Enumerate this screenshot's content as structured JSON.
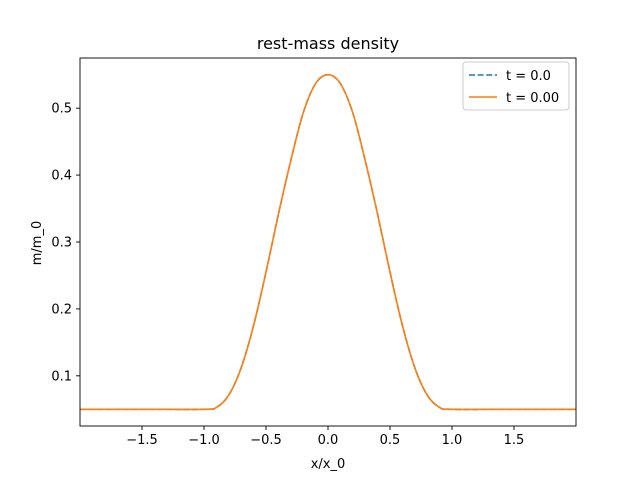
{
  "chart_data": {
    "type": "line",
    "title": "rest-mass density",
    "xlabel": "x/x_0",
    "ylabel": "m/m_0",
    "xlim": [
      -2.0,
      2.0
    ],
    "ylim": [
      0.025,
      0.575
    ],
    "xticks": [
      -1.5,
      -1.0,
      -0.5,
      0.0,
      0.5,
      1.0,
      1.5
    ],
    "xtick_labels": [
      "−1.5",
      "−1.0",
      "−0.5",
      "0.0",
      "0.5",
      "1.0",
      "1.5"
    ],
    "yticks": [
      0.1,
      0.2,
      0.3,
      0.4,
      0.5
    ],
    "ytick_labels": [
      "0.1",
      "0.2",
      "0.3",
      "0.4",
      "0.5"
    ],
    "grid": false,
    "legend_position": "top-right",
    "x": [
      -2.0,
      -1.5,
      -1.0,
      -0.9,
      -0.8,
      -0.7,
      -0.6,
      -0.5,
      -0.4,
      -0.3,
      -0.2,
      -0.1,
      0.0,
      0.1,
      0.2,
      0.3,
      0.4,
      0.5,
      0.6,
      0.7,
      0.8,
      0.9,
      1.0,
      1.5,
      2.0
    ],
    "series": [
      {
        "name": "t = 0.0",
        "color": "#1f77b4",
        "style": "dashed",
        "values": [
          0.05,
          0.05,
          0.05,
          0.0528,
          0.0712,
          0.1121,
          0.1753,
          0.2551,
          0.3414,
          0.4217,
          0.4929,
          0.5367,
          0.55,
          0.5367,
          0.4929,
          0.4217,
          0.3414,
          0.2551,
          0.1753,
          0.1121,
          0.0712,
          0.0528,
          0.05,
          0.05,
          0.05
        ]
      },
      {
        "name": "t = 0.00",
        "color": "#ff7f0e",
        "style": "solid",
        "values": [
          0.05,
          0.05,
          0.05,
          0.0528,
          0.0712,
          0.1121,
          0.1753,
          0.2551,
          0.3414,
          0.4217,
          0.4929,
          0.5367,
          0.55,
          0.5367,
          0.4929,
          0.4217,
          0.3414,
          0.2551,
          0.1753,
          0.1121,
          0.0712,
          0.0528,
          0.05,
          0.05,
          0.05
        ]
      }
    ]
  }
}
